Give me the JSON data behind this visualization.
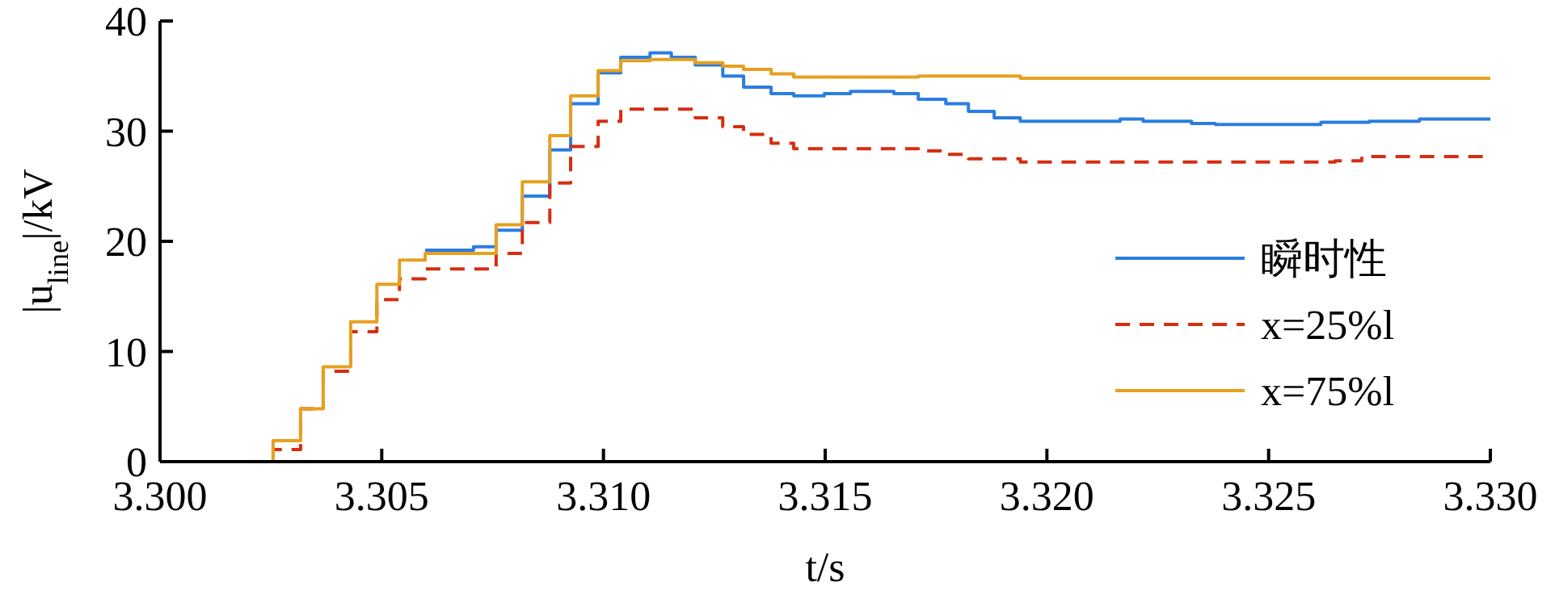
{
  "chart_data": {
    "type": "step",
    "xlabel": "t/s",
    "ylabel": "|u$_{line}$|/kV",
    "xlim": [
      3.3,
      3.33
    ],
    "xticks": [
      {
        "value": 3.3,
        "label": "3.300"
      },
      {
        "value": 3.305,
        "label": "3.305"
      },
      {
        "value": 3.31,
        "label": "3.310"
      },
      {
        "value": 3.315,
        "label": "3.315"
      },
      {
        "value": 3.32,
        "label": "3.320"
      },
      {
        "value": 3.325,
        "label": "3.325"
      },
      {
        "value": 3.33,
        "label": "3.330"
      }
    ],
    "ylim": [
      0,
      40
    ],
    "yticks": [
      0,
      10,
      20,
      30,
      40
    ],
    "grid": false,
    "legend": "right",
    "series": [
      {
        "name": "瞬时性",
        "color": "#2a7de1",
        "x": [
          3.30598,
          3.30707,
          3.30758,
          3.30817,
          3.30879,
          3.30926,
          3.30988,
          3.31039,
          3.31105,
          3.31153,
          3.31207,
          3.31269,
          3.31316,
          3.31378,
          3.31429,
          3.31498,
          3.31557,
          3.31655,
          3.3171,
          3.31772,
          3.31823,
          3.31881,
          3.3194,
          3.32165,
          3.32217,
          3.32326,
          3.3238,
          3.32618,
          3.32727,
          3.3284,
          3.33
        ],
        "values": [
          19.2,
          19.5,
          21.0,
          24.1,
          28.3,
          32.5,
          35.3,
          36.7,
          37.1,
          36.7,
          36.0,
          35.0,
          34.0,
          33.4,
          33.2,
          33.4,
          33.6,
          33.4,
          32.9,
          32.5,
          31.8,
          31.2,
          30.9,
          31.1,
          30.9,
          30.7,
          30.6,
          30.8,
          30.9,
          31.1,
          31.1
        ]
      },
      {
        "name": "x=25%l",
        "color": "#d62d10",
        "line_style": "dashed",
        "x": [
          3.3016,
          3.30255,
          3.30317,
          3.30368,
          3.3043,
          3.30489,
          3.3054,
          3.30598,
          3.30758,
          3.30817,
          3.30879,
          3.30926,
          3.30988,
          3.31039,
          3.31207,
          3.31269,
          3.31316,
          3.31378,
          3.31429,
          3.3171,
          3.31772,
          3.31823,
          3.3194,
          3.3265,
          3.3271,
          3.33
        ],
        "values": [
          0,
          1.1,
          4.8,
          8.2,
          11.8,
          14.7,
          16.6,
          17.5,
          18.9,
          21.7,
          25.3,
          28.6,
          30.9,
          32.0,
          31.2,
          30.4,
          29.7,
          28.9,
          28.4,
          28.2,
          27.9,
          27.5,
          27.2,
          27.3,
          27.7,
          27.7
        ]
      },
      {
        "name": "x=75%l",
        "color": "#e6a020",
        "x": [
          3.3016,
          3.30255,
          3.30317,
          3.30368,
          3.3043,
          3.30489,
          3.3054,
          3.30598,
          3.30758,
          3.30817,
          3.30879,
          3.30926,
          3.30988,
          3.31039,
          3.31105,
          3.31207,
          3.31269,
          3.31316,
          3.31378,
          3.31429,
          3.3171,
          3.3194,
          3.33
        ],
        "values": [
          0,
          1.9,
          4.8,
          8.6,
          12.7,
          16.1,
          18.3,
          18.9,
          21.5,
          25.4,
          29.6,
          33.2,
          35.5,
          36.4,
          36.5,
          36.2,
          35.9,
          35.6,
          35.2,
          34.9,
          35.0,
          34.8,
          34.8
        ]
      }
    ]
  }
}
